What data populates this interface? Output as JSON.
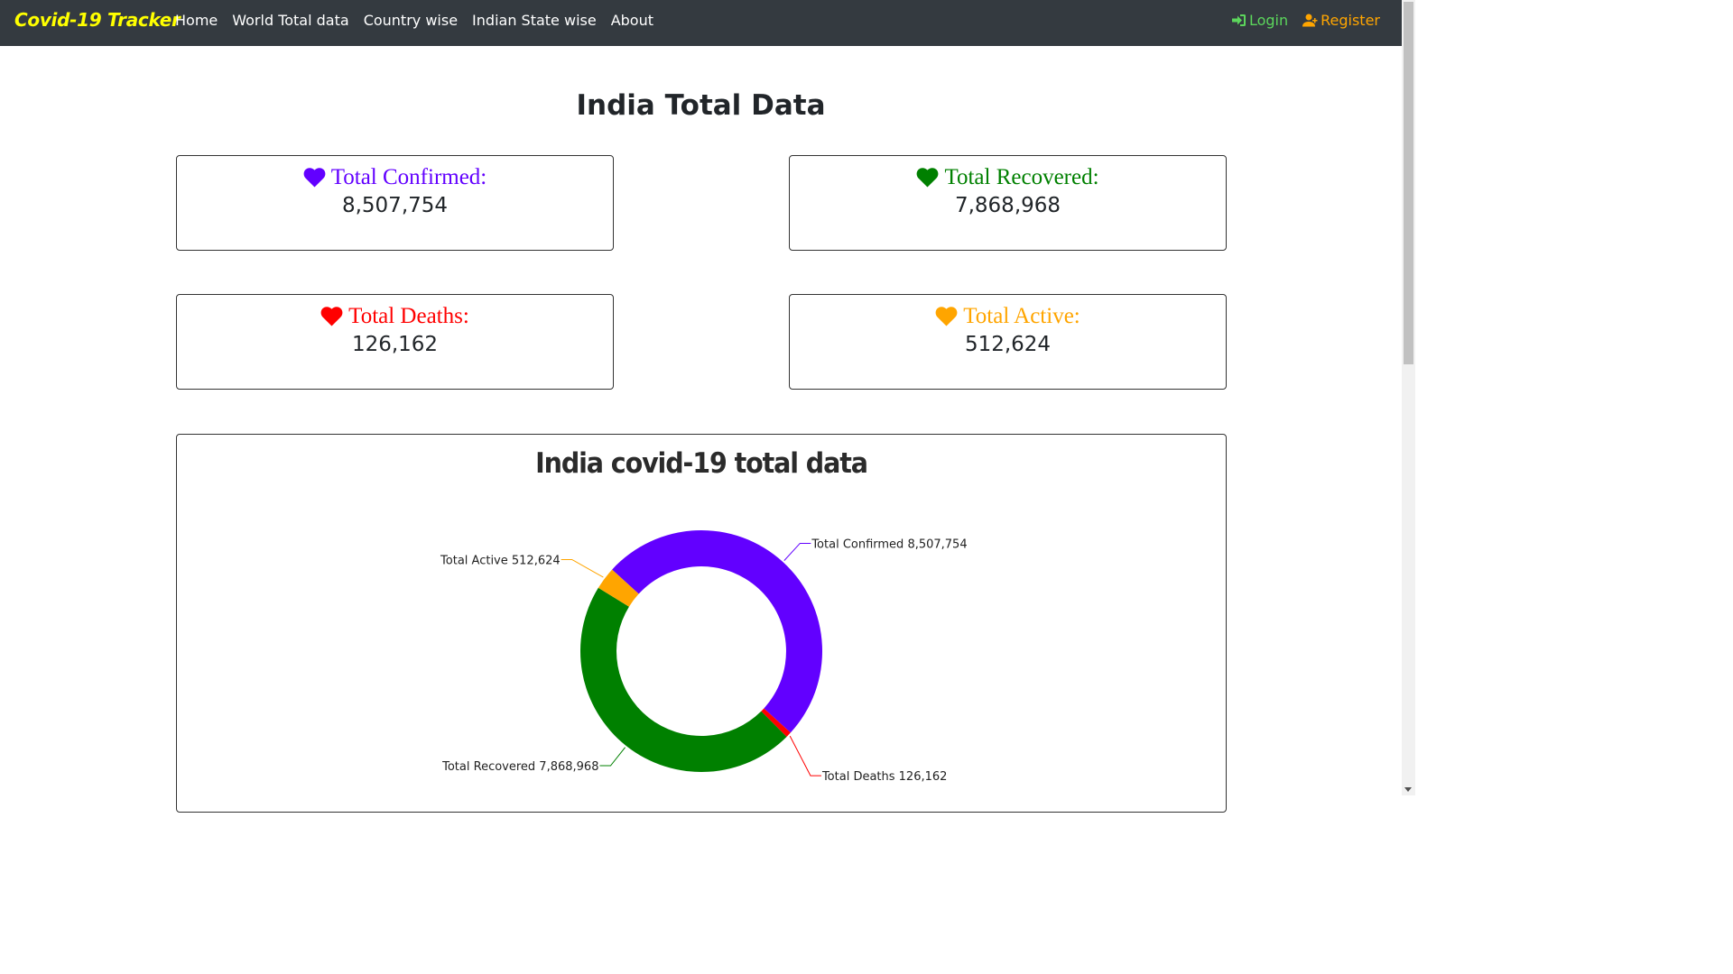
{
  "navbar": {
    "brand": "Covid-19 Tracker",
    "links": [
      "Home",
      "World Total data",
      "Country wise",
      "Indian State wise",
      "About"
    ],
    "login": "Login",
    "register": "Register",
    "colors": {
      "bg": "#343a40",
      "brand": "#ffff00",
      "login": "#28a745",
      "register": "#ffa500"
    }
  },
  "page": {
    "title": "India Total Data"
  },
  "cards": [
    {
      "label": "Total Confirmed:",
      "value": "8,507,754",
      "color": "#6200ff",
      "icon": "heart-icon"
    },
    {
      "label": "Total Recovered:",
      "value": "7,868,968",
      "color": "#008000",
      "icon": "heart-icon"
    },
    {
      "label": "Total Deaths:",
      "value": "126,162",
      "color": "#ff0000",
      "icon": "heart-icon"
    },
    {
      "label": "Total Active:",
      "value": "512,624",
      "color": "#ffa500",
      "icon": "heart-icon"
    }
  ],
  "chart_data": {
    "type": "pie",
    "variant": "donut",
    "title": "India covid-19 total data",
    "slices": [
      {
        "label": "Total Confirmed 8,507,754",
        "value": 8507754,
        "color": "#6200ff"
      },
      {
        "label": "Total Deaths 126,162",
        "value": 126162,
        "color": "#ff0000"
      },
      {
        "label": "Total Recovered 7,868,968",
        "value": 7868968,
        "color": "#008000"
      },
      {
        "label": "Total Active 512,624",
        "value": 512624,
        "color": "#ffa500"
      }
    ]
  }
}
